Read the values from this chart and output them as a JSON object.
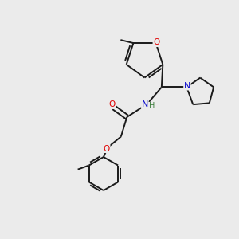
{
  "background_color": "#ebebeb",
  "bond_color": "#1a1a1a",
  "atom_colors": {
    "O": "#e00000",
    "N": "#0000cc",
    "H": "#408040"
  },
  "figsize": [
    3.0,
    3.0
  ],
  "dpi": 100
}
